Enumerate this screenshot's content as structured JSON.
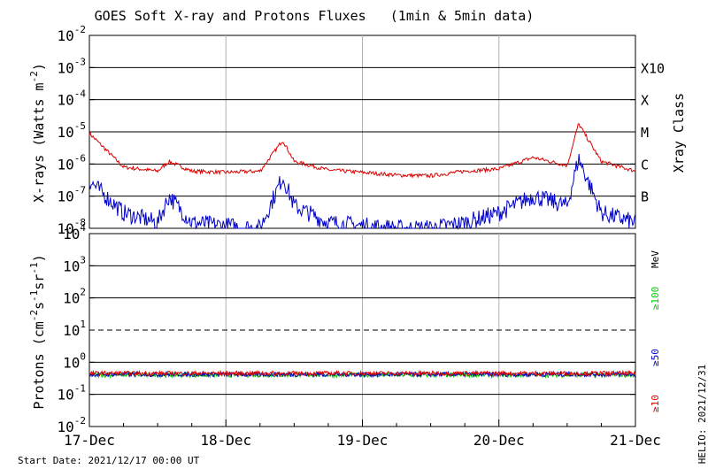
{
  "chart_data": [
    {
      "type": "line",
      "title": "GOES Soft X-ray and Protons Fluxes   (1min & 5min data)",
      "ylabel": {
        "base": "X-rays (Watts m",
        "sup": "-2",
        "end": ")"
      },
      "yscale": "log",
      "ylim": [
        1e-08,
        0.01
      ],
      "ytick_exponents": [
        "-2",
        "-3",
        "-4",
        "-5",
        "-6",
        "-7",
        "-8"
      ],
      "ytick_base": "10",
      "right_label": "Xray Class",
      "xray_classes": [
        {
          "label": "X10",
          "value": 0.001
        },
        {
          "label": "X",
          "value": 0.0001
        },
        {
          "label": "M",
          "value": 1e-05
        },
        {
          "label": "C",
          "value": 1e-06
        },
        {
          "label": "B",
          "value": 1e-07
        }
      ],
      "x": [
        "2021-12-17 00:00",
        "2021-12-17 06:00",
        "2021-12-17 12:00",
        "2021-12-17 14:00",
        "2021-12-17 18:00",
        "2021-12-18 00:00",
        "2021-12-18 06:00",
        "2021-12-18 10:00",
        "2021-12-18 12:00",
        "2021-12-18 18:00",
        "2021-12-19 00:00",
        "2021-12-19 06:00",
        "2021-12-19 12:00",
        "2021-12-19 18:00",
        "2021-12-20 00:00",
        "2021-12-20 06:00",
        "2021-12-20 12:00",
        "2021-12-20 14:00",
        "2021-12-20 18:00",
        "2021-12-21 00:00"
      ],
      "series": [
        {
          "color": "#dd0000",
          "values": [
            9e-06,
            8e-07,
            6e-07,
            1.2e-06,
            6e-07,
            5.5e-07,
            6e-07,
            5.5e-06,
            1.2e-06,
            6.5e-07,
            5.5e-07,
            4.5e-07,
            4.3e-07,
            6e-07,
            7e-07,
            1.6e-06,
            9e-07,
            1.8e-05,
            1.2e-06,
            6e-07
          ]
        },
        {
          "color": "#0000cc",
          "values": [
            3e-07,
            3e-08,
            1.5e-08,
            1e-07,
            1.5e-08,
            1.2e-08,
            1e-08,
            4e-07,
            5e-08,
            1.5e-08,
            1.2e-08,
            1e-08,
            1e-08,
            1.5e-08,
            3e-08,
            1e-07,
            5e-08,
            1.5e-06,
            3e-08,
            1.5e-08
          ]
        }
      ]
    },
    {
      "type": "line",
      "ylabel": {
        "base": "Protons (cm",
        "sup1": "-2",
        "mid": "s",
        "sup2": "-1",
        "mid2": "sr",
        "sup3": "-1",
        "end": ")"
      },
      "yscale": "log",
      "ylim": [
        0.01,
        10000
      ],
      "ytick_exponents": [
        "4",
        "3",
        "2",
        "1",
        "0",
        "-1",
        "-2"
      ],
      "ytick_base": "10",
      "threshold": 10,
      "right_label": "MeV",
      "series": [
        {
          "name": "≥100",
          "color": "#00cc00",
          "level": 0.4
        },
        {
          "name": "≥50",
          "color": "#0000cc",
          "level": 0.42
        },
        {
          "name": "≥10",
          "color": "#dd0000",
          "level": 0.45
        }
      ]
    }
  ],
  "xaxis": {
    "tick_labels": [
      "17-Dec",
      "18-Dec",
      "19-Dec",
      "20-Dec",
      "21-Dec"
    ]
  },
  "footer": {
    "start_date": "Start Date: 2021/12/17 00:00 UT",
    "side_date": "HELIO: 2021/12/31"
  }
}
